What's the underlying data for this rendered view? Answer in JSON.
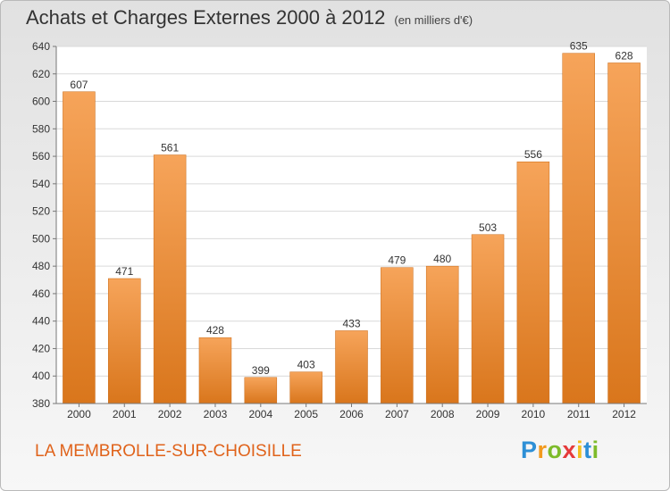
{
  "header": {
    "title": "Achats et Charges Externes 2000 à 2012",
    "subtitle": "(en milliers d'€)"
  },
  "footer": {
    "commune": "LA MEMBROLLE-SUR-CHOISILLE",
    "logo_letters": [
      "P",
      "r",
      "o",
      "x",
      "i",
      "t",
      "i"
    ],
    "logo_colors": [
      "#2d8fd6",
      "#f29a1e",
      "#7dbb2a",
      "#e53a3a",
      "#f2c01e",
      "#2d8fd6",
      "#7dbb2a"
    ]
  },
  "chart_data": {
    "type": "bar",
    "categories": [
      "2000",
      "2001",
      "2002",
      "2003",
      "2004",
      "2005",
      "2006",
      "2007",
      "2008",
      "2009",
      "2010",
      "2011",
      "2012"
    ],
    "values": [
      607,
      471,
      561,
      428,
      399,
      403,
      433,
      479,
      480,
      503,
      556,
      635,
      628
    ],
    "data_labels": [
      "607",
      "471",
      "561",
      "428",
      "399",
      "403",
      "433",
      "479",
      "480",
      "503",
      "556",
      "635",
      "628"
    ],
    "yticks": [
      "380",
      "400",
      "420",
      "440",
      "460",
      "480",
      "500",
      "520",
      "540",
      "560",
      "580",
      "600",
      "620",
      "640"
    ],
    "ylim": [
      380,
      640
    ],
    "bar_color": "#f0903a",
    "grid": true
  }
}
